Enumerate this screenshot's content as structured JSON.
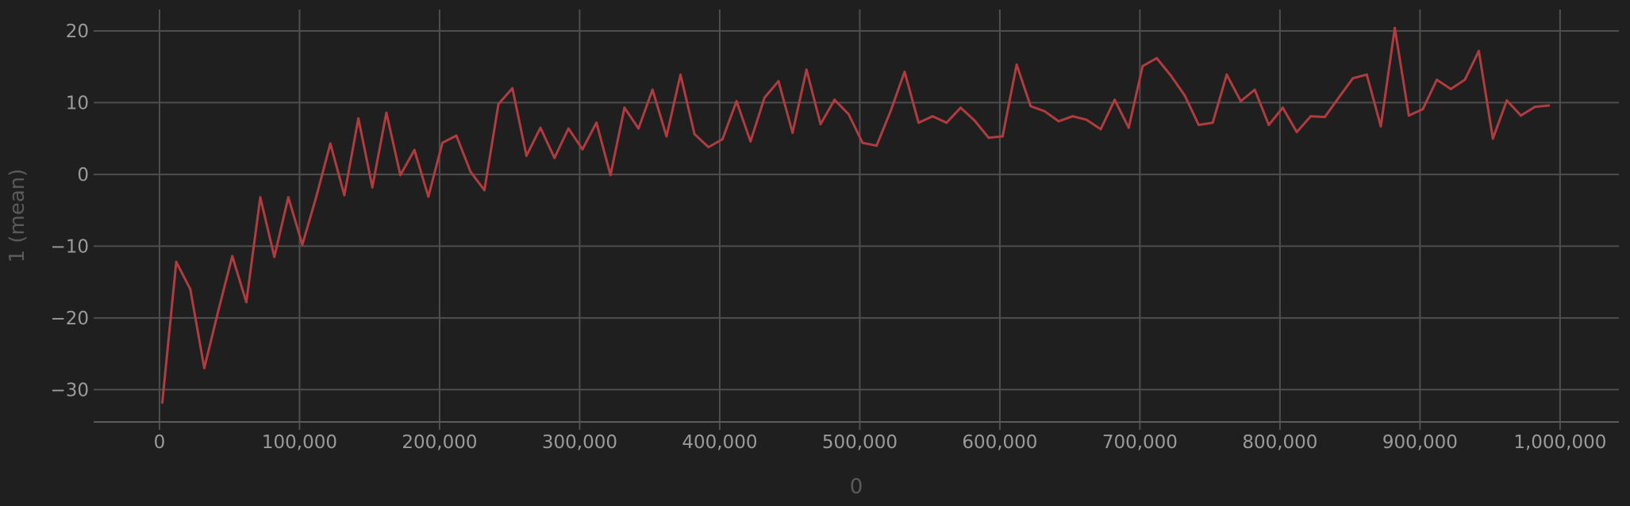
{
  "chart_data": {
    "type": "line",
    "xlabel": "0",
    "ylabel": "1 (mean)",
    "xlim": [
      -47000,
      1042000
    ],
    "ylim": [
      -34.5,
      23.2
    ],
    "x_ticks": [
      0,
      100000,
      200000,
      300000,
      400000,
      500000,
      600000,
      700000,
      800000,
      900000,
      1000000
    ],
    "x_tick_labels": [
      "0",
      "100,000",
      "200,000",
      "300,000",
      "400,000",
      "500,000",
      "600,000",
      "700,000",
      "800,000",
      "900,000",
      "1,000,000"
    ],
    "y_ticks": [
      20,
      10,
      0,
      -10,
      -20,
      -30
    ],
    "y_tick_labels": [
      "20",
      "10",
      "0",
      "−10",
      "−20",
      "−30"
    ],
    "grid": true,
    "colors": {
      "background": "#1f1f1f",
      "series": "#b23b3f",
      "grid": "#4e4e4e"
    },
    "series": [
      {
        "x": [
          2000,
          12000,
          22000,
          32000,
          42000,
          52000,
          62000,
          72000,
          82000,
          92000,
          102000,
          112000,
          122000,
          132000,
          142000,
          152000,
          162000,
          172000,
          182000,
          192000,
          202000,
          212000,
          222000,
          232000,
          242000,
          252000,
          262000,
          272000,
          282000,
          292000,
          302000,
          312000,
          322000,
          332000,
          342000,
          352000,
          362000,
          372000,
          382000,
          392000,
          402000,
          412000,
          422000,
          432000,
          442000,
          452000,
          462000,
          472000,
          482000,
          492000,
          502000,
          512000,
          522000,
          532000,
          542000,
          552000,
          562000,
          572000,
          582000,
          592000,
          602000,
          612000,
          622000,
          632000,
          642000,
          652000,
          662000,
          672000,
          682000,
          692000,
          702000,
          712000,
          722000,
          732000,
          742000,
          752000,
          762000,
          772000,
          782000,
          792000,
          802000,
          812000,
          822000,
          832000,
          842000,
          852000,
          862000,
          872000,
          882000,
          892000,
          902000,
          912000,
          922000,
          932000,
          942000,
          952000,
          962000,
          972000,
          982000,
          992000
        ],
        "values": [
          -31.8,
          -12.2,
          -16.0,
          -27.0,
          -19.0,
          -11.4,
          -17.8,
          -3.2,
          -11.5,
          -3.2,
          -9.8,
          -3.1,
          4.3,
          -2.9,
          7.8,
          -1.8,
          8.6,
          -0.1,
          3.4,
          -3.1,
          4.4,
          5.4,
          0.4,
          -2.2,
          9.8,
          12.0,
          2.6,
          6.5,
          2.3,
          6.4,
          3.5,
          7.2,
          -0.1,
          9.3,
          6.4,
          11.8,
          5.3,
          13.9,
          5.6,
          3.8,
          4.9,
          10.2,
          4.6,
          10.7,
          13.0,
          5.8,
          14.6,
          7.0,
          10.4,
          8.4,
          4.4,
          4.0,
          8.8,
          14.3,
          7.2,
          8.1,
          7.2,
          9.3,
          7.5,
          5.1,
          5.3,
          15.3,
          9.5,
          8.8,
          7.4,
          8.1,
          7.6,
          6.3,
          10.4,
          6.5,
          15.1,
          16.2,
          13.8,
          11.0,
          6.9,
          7.2,
          13.9,
          10.2,
          11.8,
          6.9,
          9.3,
          5.9,
          8.1,
          8.0,
          10.7,
          13.4,
          13.9,
          6.7,
          20.4,
          8.2,
          9.1,
          13.2,
          11.9,
          13.2,
          17.2,
          5.0,
          10.3,
          8.2,
          9.4,
          9.6
        ]
      }
    ]
  }
}
